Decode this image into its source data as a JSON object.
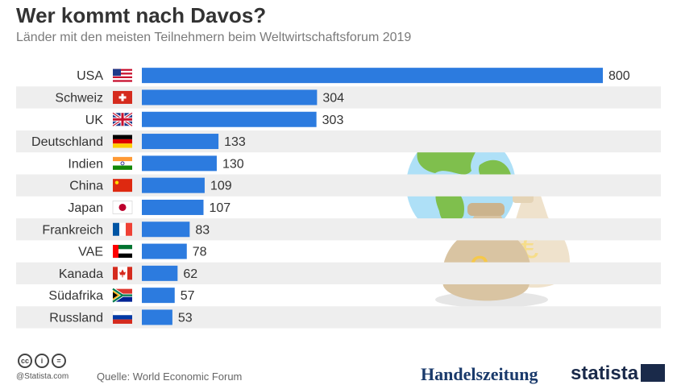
{
  "title": "Wer kommt nach Davos?",
  "subtitle": "Länder mit den meisten Teilnehmern beim Weltwirtschaftsforum 2019",
  "colors": {
    "bar": "#2c7bdf",
    "row_band": "#eeeeee",
    "label": "#333333"
  },
  "chart_data": {
    "type": "bar",
    "orientation": "horizontal",
    "categories": [
      "USA",
      "Schweiz",
      "UK",
      "Deutschland",
      "Indien",
      "China",
      "Japan",
      "Frankreich",
      "VAE",
      "Kanada",
      "Südafrika",
      "Russland"
    ],
    "values": [
      800,
      304,
      303,
      133,
      130,
      109,
      107,
      83,
      78,
      62,
      57,
      53
    ],
    "flags": [
      "us-flag-icon",
      "ch-flag-icon",
      "uk-flag-icon",
      "de-flag-icon",
      "in-flag-icon",
      "cn-flag-icon",
      "jp-flag-icon",
      "fr-flag-icon",
      "ae-flag-icon",
      "ca-flag-icon",
      "za-flag-icon",
      "ru-flag-icon"
    ],
    "xlim": [
      0,
      800
    ],
    "grid": false,
    "legend": "none",
    "data_labels": true
  },
  "footer": {
    "statista_credit": "@Statista.com",
    "source": "Quelle: World Economic Forum",
    "brand_handelszeitung": "Handelszeitung",
    "brand_statista": "statista"
  },
  "illustration": "globe-and-money-bags-icon"
}
